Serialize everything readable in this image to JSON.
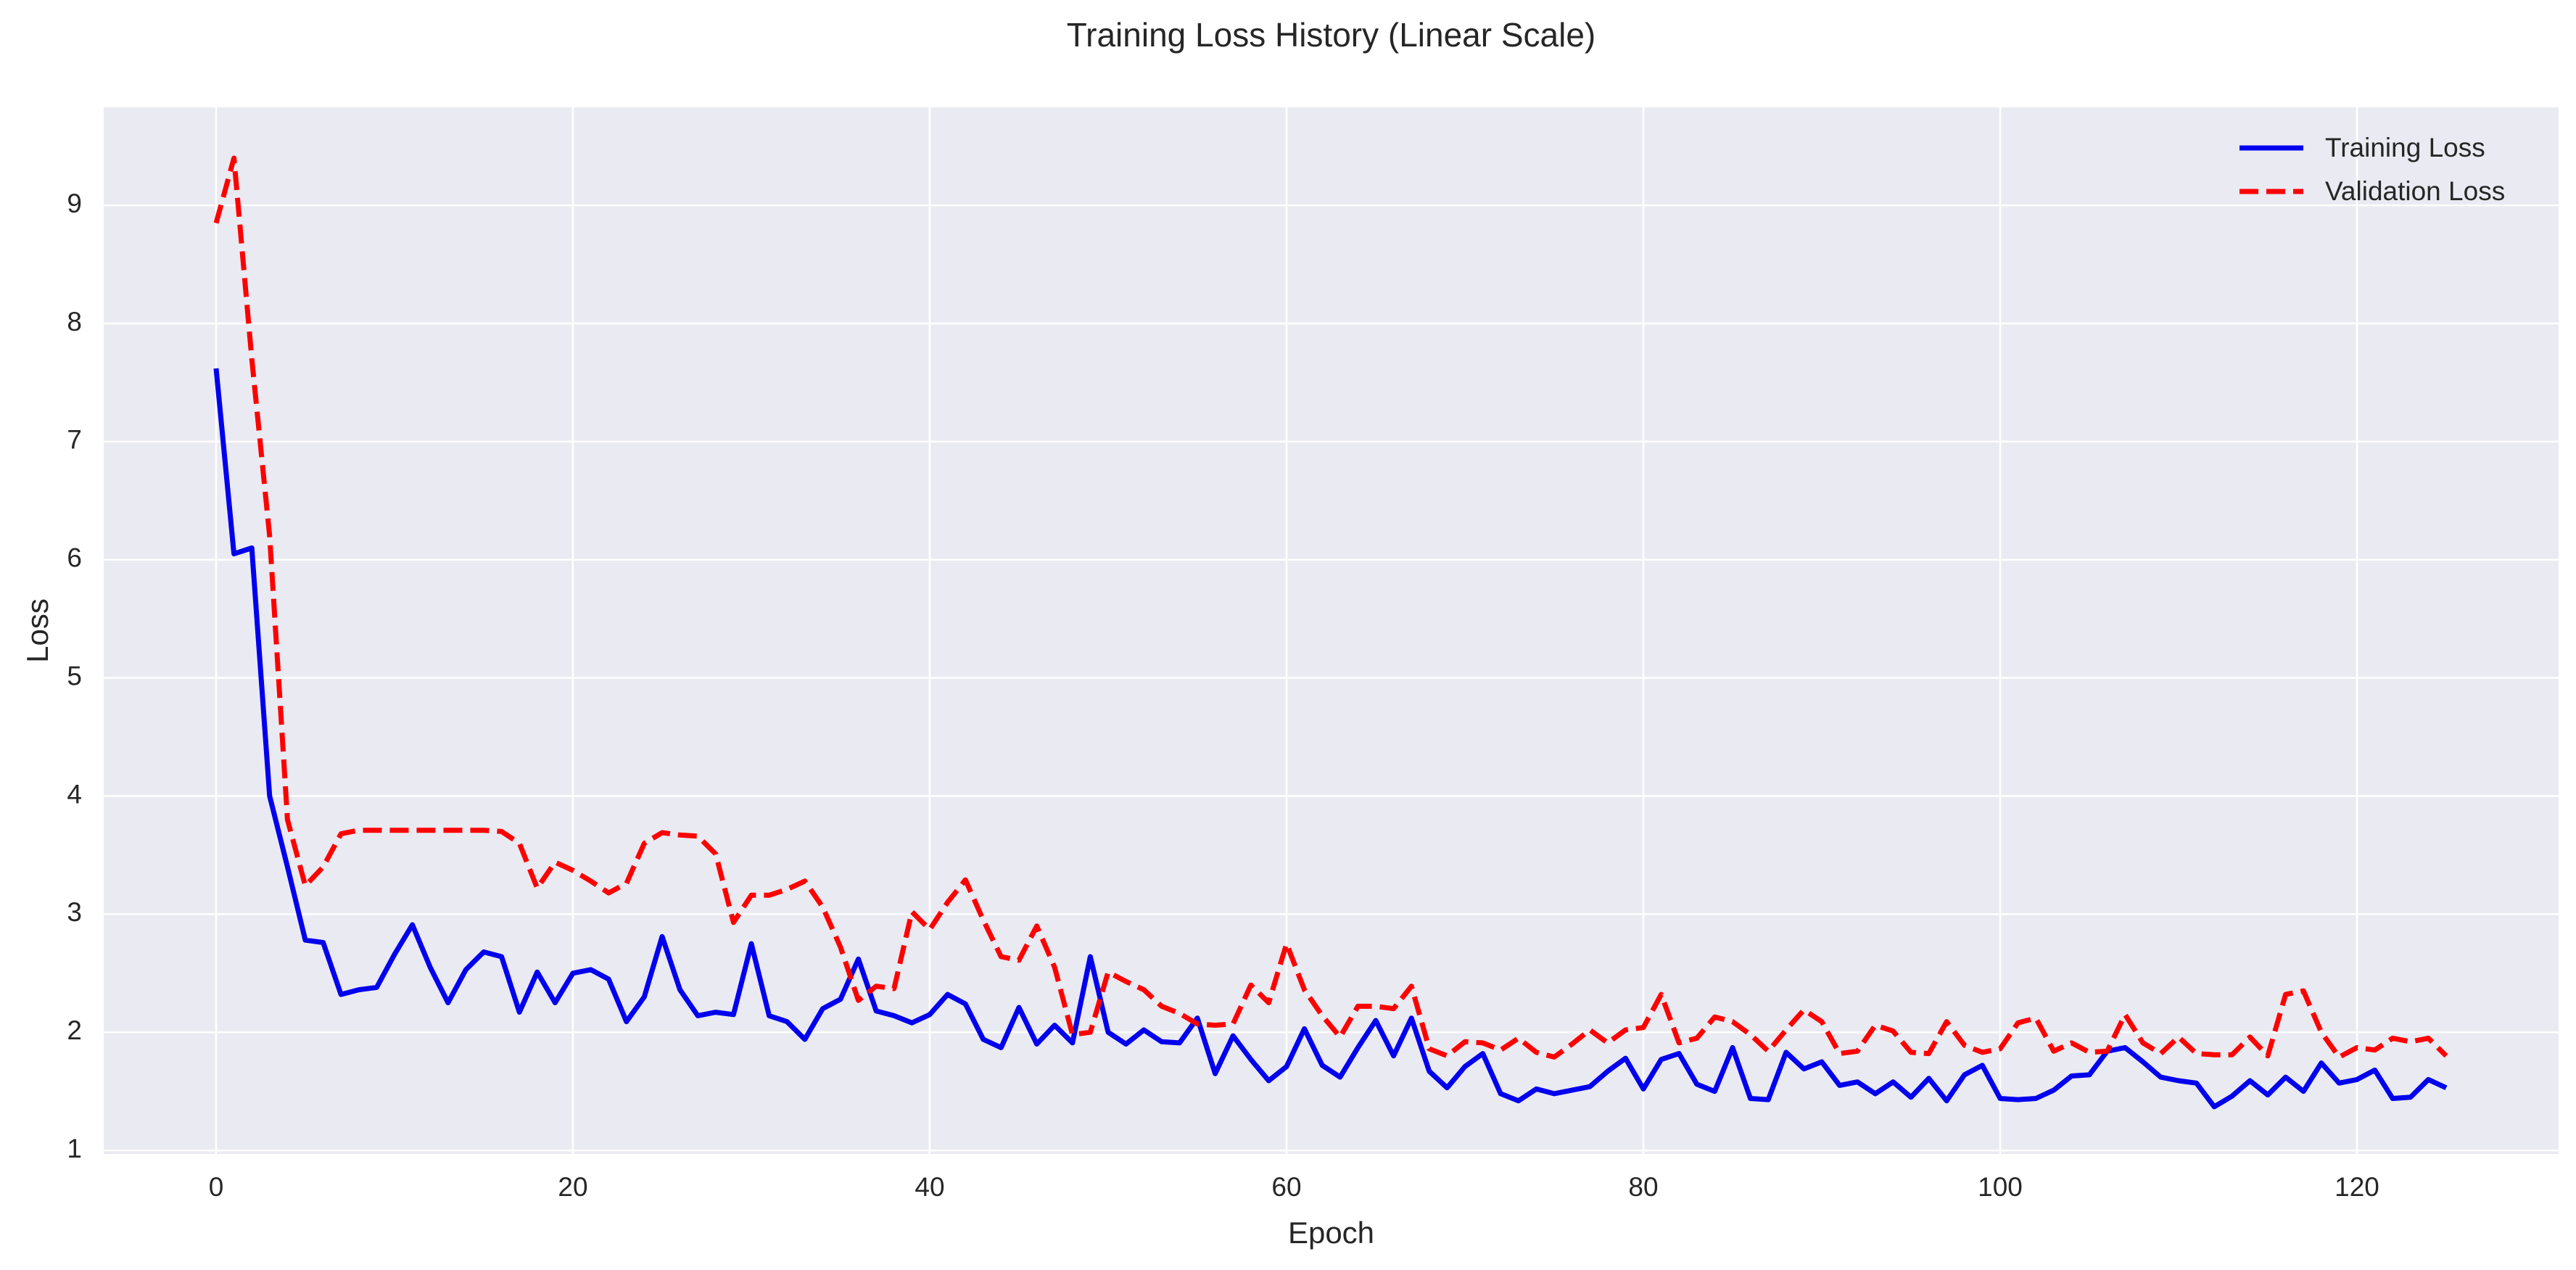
{
  "chart_data": {
    "type": "line",
    "title": "Training Loss History (Linear Scale)",
    "xlabel": "Epoch",
    "ylabel": "Loss",
    "xlim": [
      -6.3,
      131.3
    ],
    "ylim": [
      0.97,
      9.83
    ],
    "xticks": [
      0,
      20,
      40,
      60,
      80,
      100,
      120
    ],
    "yticks": [
      1,
      2,
      3,
      4,
      5,
      6,
      7,
      8,
      9
    ],
    "grid": true,
    "legend_position": "top-right",
    "x": [
      0,
      1,
      2,
      3,
      4,
      5,
      6,
      7,
      8,
      9,
      10,
      11,
      12,
      13,
      14,
      15,
      16,
      17,
      18,
      19,
      20,
      21,
      22,
      23,
      24,
      25,
      26,
      27,
      28,
      29,
      30,
      31,
      32,
      33,
      34,
      35,
      36,
      37,
      38,
      39,
      40,
      41,
      42,
      43,
      44,
      45,
      46,
      47,
      48,
      49,
      50,
      51,
      52,
      53,
      54,
      55,
      56,
      57,
      58,
      59,
      60,
      61,
      62,
      63,
      64,
      65,
      66,
      67,
      68,
      69,
      70,
      71,
      72,
      73,
      74,
      75,
      76,
      77,
      78,
      79,
      80,
      81,
      82,
      83,
      84,
      85,
      86,
      87,
      88,
      89,
      90,
      91,
      92,
      93,
      94,
      95,
      96,
      97,
      98,
      99,
      100,
      101,
      102,
      103,
      104,
      105,
      106,
      107,
      108,
      109,
      110,
      111,
      112,
      113,
      114,
      115,
      116,
      117,
      118,
      119,
      120,
      121,
      122,
      123,
      124,
      125
    ],
    "series": [
      {
        "name": "Training Loss",
        "color": "#0000ee",
        "style": "solid",
        "values": [
          7.62,
          6.05,
          6.1,
          4.0,
          3.4,
          2.78,
          2.76,
          2.32,
          2.36,
          2.38,
          2.66,
          2.91,
          2.55,
          2.25,
          2.53,
          2.68,
          2.64,
          2.17,
          2.51,
          2.25,
          2.5,
          2.53,
          2.45,
          2.09,
          2.3,
          2.81,
          2.36,
          2.14,
          2.17,
          2.15,
          2.75,
          2.14,
          2.09,
          1.94,
          2.2,
          2.28,
          2.62,
          2.18,
          2.14,
          2.08,
          2.15,
          2.32,
          2.24,
          1.94,
          1.87,
          2.21,
          1.9,
          2.06,
          1.91,
          2.64,
          2.0,
          1.9,
          2.02,
          1.92,
          1.91,
          2.12,
          1.65,
          1.97,
          1.77,
          1.59,
          1.71,
          2.03,
          1.72,
          1.62,
          1.87,
          2.1,
          1.8,
          2.12,
          1.67,
          1.53,
          1.71,
          1.82,
          1.48,
          1.42,
          1.52,
          1.48,
          1.51,
          1.54,
          1.67,
          1.78,
          1.52,
          1.77,
          1.82,
          1.56,
          1.5,
          1.87,
          1.44,
          1.43,
          1.83,
          1.69,
          1.75,
          1.55,
          1.58,
          1.48,
          1.58,
          1.45,
          1.61,
          1.42,
          1.64,
          1.72,
          1.44,
          1.43,
          1.44,
          1.51,
          1.63,
          1.64,
          1.84,
          1.87,
          1.75,
          1.62,
          1.59,
          1.57,
          1.37,
          1.46,
          1.59,
          1.47,
          1.62,
          1.5,
          1.74,
          1.57,
          1.6,
          1.68,
          1.44,
          1.45,
          1.6,
          1.53
        ]
      },
      {
        "name": "Validation Loss",
        "color": "#ff0000",
        "style": "dashed",
        "values": [
          8.85,
          9.4,
          7.7,
          6.2,
          3.8,
          3.24,
          3.4,
          3.68,
          3.71,
          3.71,
          3.71,
          3.71,
          3.71,
          3.71,
          3.71,
          3.71,
          3.7,
          3.6,
          3.22,
          3.44,
          3.37,
          3.28,
          3.18,
          3.26,
          3.6,
          3.69,
          3.67,
          3.66,
          3.51,
          2.93,
          3.16,
          3.16,
          3.21,
          3.28,
          3.06,
          2.72,
          2.27,
          2.39,
          2.37,
          3.02,
          2.87,
          3.1,
          3.29,
          2.95,
          2.64,
          2.61,
          2.9,
          2.55,
          1.98,
          2.0,
          2.51,
          2.43,
          2.36,
          2.22,
          2.16,
          2.07,
          2.06,
          2.07,
          2.4,
          2.25,
          2.75,
          2.36,
          2.14,
          1.96,
          2.22,
          2.22,
          2.2,
          2.39,
          1.86,
          1.8,
          1.92,
          1.91,
          1.85,
          1.95,
          1.83,
          1.79,
          1.9,
          2.02,
          1.91,
          2.02,
          2.04,
          2.32,
          1.91,
          1.95,
          2.13,
          2.09,
          1.98,
          1.84,
          2.02,
          2.19,
          2.09,
          1.82,
          1.84,
          2.06,
          2.01,
          1.83,
          1.82,
          2.09,
          1.89,
          1.83,
          1.86,
          2.08,
          2.12,
          1.84,
          1.91,
          1.83,
          1.84,
          2.15,
          1.91,
          1.82,
          1.96,
          1.82,
          1.81,
          1.81,
          1.96,
          1.8,
          2.32,
          2.35,
          2.0,
          1.79,
          1.87,
          1.85,
          1.95,
          1.92,
          1.95,
          1.8
        ]
      }
    ]
  }
}
